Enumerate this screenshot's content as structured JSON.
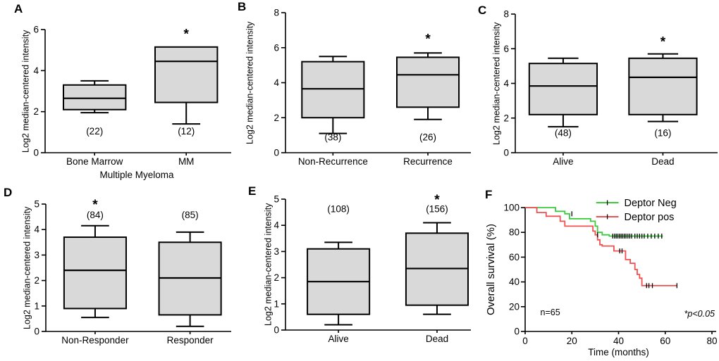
{
  "figure": {
    "background": "#ffffff",
    "line_color": "#000000",
    "box_fill": "#d9d9d9",
    "significance_symbol": "*"
  },
  "chart_data": [
    {
      "id": "A",
      "type": "box",
      "panel_label": "A",
      "ylabel": "Log2 median-centered intensity",
      "xlabel": "Multiple Myeloma",
      "ylim": [
        0,
        6
      ],
      "yticks": [
        0,
        2,
        4,
        6
      ],
      "categories": [
        "Bone Marrow",
        "MM"
      ],
      "boxes": [
        {
          "category": "Bone Marrow",
          "n_label": "(22)",
          "n_label_y": 0.9,
          "whisker_low": 1.95,
          "q1": 2.1,
          "median": 2.65,
          "q3": 3.3,
          "whisker_high": 3.5,
          "significant": false
        },
        {
          "category": "MM",
          "n_label": "(12)",
          "n_label_y": 0.9,
          "whisker_low": 1.4,
          "q1": 2.45,
          "median": 4.45,
          "q3": 5.15,
          "whisker_high": 5.15,
          "significant": true,
          "star_y": 5.75
        }
      ]
    },
    {
      "id": "B",
      "type": "box",
      "panel_label": "B",
      "ylabel": "Log2 median-centered intensity",
      "xlabel": "",
      "ylim": [
        0,
        8
      ],
      "yticks": [
        0,
        2,
        4,
        6,
        8
      ],
      "categories": [
        "Non-Recurrence",
        "Recurrence"
      ],
      "boxes": [
        {
          "category": "Non-Recurrence",
          "n_label": "(38)",
          "n_label_y": 0.7,
          "whisker_low": 1.1,
          "q1": 2.0,
          "median": 3.65,
          "q3": 5.2,
          "whisker_high": 5.5,
          "significant": false
        },
        {
          "category": "Recurrence",
          "n_label": "(26)",
          "n_label_y": 0.7,
          "whisker_low": 1.9,
          "q1": 2.6,
          "median": 4.45,
          "q3": 5.45,
          "whisker_high": 5.7,
          "significant": true,
          "star_y": 6.45
        }
      ]
    },
    {
      "id": "C",
      "type": "box",
      "panel_label": "C",
      "ylabel": "Log2 median-centered intensity",
      "xlabel": "",
      "ylim": [
        0,
        8
      ],
      "yticks": [
        0,
        2,
        4,
        6,
        8
      ],
      "categories": [
        "Alive",
        "Dead"
      ],
      "boxes": [
        {
          "category": "Alive",
          "n_label": "(48)",
          "n_label_y": 0.95,
          "whisker_low": 1.5,
          "q1": 2.2,
          "median": 3.85,
          "q3": 5.15,
          "whisker_high": 5.45,
          "significant": false
        },
        {
          "category": "Dead",
          "n_label": "(16)",
          "n_label_y": 0.95,
          "whisker_low": 1.8,
          "q1": 2.2,
          "median": 4.35,
          "q3": 5.45,
          "whisker_high": 5.7,
          "significant": true,
          "star_y": 6.35
        }
      ]
    },
    {
      "id": "D",
      "type": "box",
      "panel_label": "D",
      "ylabel": "Log2 median-centered intensity",
      "xlabel": "",
      "ylim": [
        0,
        5
      ],
      "yticks": [
        0,
        1,
        2,
        3,
        4,
        5
      ],
      "categories": [
        "Non-Responder",
        "Responder"
      ],
      "boxes": [
        {
          "category": "Non-Responder",
          "n_label": "(84)",
          "n_label_y": 4.45,
          "whisker_low": 0.55,
          "q1": 0.9,
          "median": 2.4,
          "q3": 3.7,
          "whisker_high": 4.15,
          "significant": true,
          "star_y": 4.95
        },
        {
          "category": "Responder",
          "n_label": "(85)",
          "n_label_y": 4.45,
          "whisker_low": 0.2,
          "q1": 0.65,
          "median": 2.1,
          "q3": 3.5,
          "whisker_high": 3.9,
          "significant": false
        }
      ]
    },
    {
      "id": "E",
      "type": "box",
      "panel_label": "E",
      "ylabel": "Log2 median-centered intensity",
      "xlabel": "",
      "ylim": [
        0,
        5
      ],
      "yticks": [
        0,
        1,
        2,
        3,
        4,
        5
      ],
      "categories": [
        "Alive",
        "Dead"
      ],
      "boxes": [
        {
          "category": "Alive",
          "n_label": "(108)",
          "n_label_y": 4.5,
          "whisker_low": 0.2,
          "q1": 0.6,
          "median": 1.85,
          "q3": 3.1,
          "whisker_high": 3.35,
          "significant": false
        },
        {
          "category": "Dead",
          "n_label": "(156)",
          "n_label_y": 4.5,
          "whisker_low": 0.6,
          "q1": 0.95,
          "median": 2.35,
          "q3": 3.7,
          "whisker_high": 4.1,
          "significant": true,
          "star_y": 4.95
        }
      ]
    },
    {
      "id": "F",
      "type": "line",
      "panel_label": "F",
      "ylabel": "Overall survival (%)",
      "xlabel": "Time (months)",
      "ylim": [
        0,
        100
      ],
      "yticks": [
        0,
        20,
        40,
        60,
        80,
        100
      ],
      "xlim": [
        0,
        80
      ],
      "xticks": [
        0,
        20,
        40,
        60,
        80
      ],
      "legend_position": "top-right",
      "series": [
        {
          "name": "Deptor Neg",
          "color": "#3dc93d",
          "steps": [
            [
              0,
              100
            ],
            [
              13,
              100
            ],
            [
              13,
              97
            ],
            [
              17,
              97
            ],
            [
              17,
              95
            ],
            [
              19,
              95
            ],
            [
              19,
              91
            ],
            [
              28,
              91
            ],
            [
              28,
              89
            ],
            [
              30,
              89
            ],
            [
              30,
              85
            ],
            [
              31,
              85
            ],
            [
              31,
              80
            ],
            [
              33,
              80
            ],
            [
              33,
              78
            ],
            [
              36,
              78
            ],
            [
              36,
              77
            ],
            [
              59,
              77
            ]
          ],
          "censors": [
            [
              20,
              95
            ],
            [
              37.5,
              77
            ],
            [
              38.3,
              77
            ],
            [
              39,
              77
            ],
            [
              39.7,
              77
            ],
            [
              40.4,
              77
            ],
            [
              41.1,
              77
            ],
            [
              41.8,
              77
            ],
            [
              42.5,
              77
            ],
            [
              43.2,
              77
            ],
            [
              44,
              77
            ],
            [
              44.8,
              77
            ],
            [
              45.6,
              77
            ],
            [
              47,
              77
            ],
            [
              48,
              77
            ],
            [
              49,
              77
            ],
            [
              50,
              77
            ],
            [
              51,
              77
            ],
            [
              52.5,
              77
            ],
            [
              54,
              77
            ],
            [
              55.5,
              77
            ],
            [
              57,
              77
            ],
            [
              58.5,
              77
            ]
          ]
        },
        {
          "name": "Deptor pos",
          "color": "#f05050",
          "steps": [
            [
              0,
              100
            ],
            [
              5,
              100
            ],
            [
              5,
              96
            ],
            [
              9,
              96
            ],
            [
              9,
              93
            ],
            [
              15,
              93
            ],
            [
              15,
              89
            ],
            [
              17,
              89
            ],
            [
              17,
              85
            ],
            [
              29,
              85
            ],
            [
              29,
              81
            ],
            [
              30,
              81
            ],
            [
              30,
              78
            ],
            [
              31,
              78
            ],
            [
              31,
              74
            ],
            [
              32,
              74
            ],
            [
              32,
              70
            ],
            [
              33,
              70
            ],
            [
              33,
              69
            ],
            [
              38,
              69
            ],
            [
              38,
              65
            ],
            [
              43,
              65
            ],
            [
              43,
              58
            ],
            [
              45,
              58
            ],
            [
              45,
              55
            ],
            [
              47,
              55
            ],
            [
              47,
              50
            ],
            [
              48,
              50
            ],
            [
              48,
              46
            ],
            [
              49,
              46
            ],
            [
              49,
              43
            ],
            [
              50,
              43
            ],
            [
              50,
              37
            ],
            [
              65,
              37
            ]
          ],
          "censors": [
            [
              31,
              78
            ],
            [
              40.5,
              65
            ],
            [
              41.5,
              65
            ],
            [
              52,
              37
            ],
            [
              53,
              37
            ],
            [
              54.5,
              37
            ],
            [
              65,
              37
            ]
          ]
        }
      ],
      "annotations": {
        "n_text": "n=65",
        "p_text": "*p<0.05"
      }
    }
  ]
}
